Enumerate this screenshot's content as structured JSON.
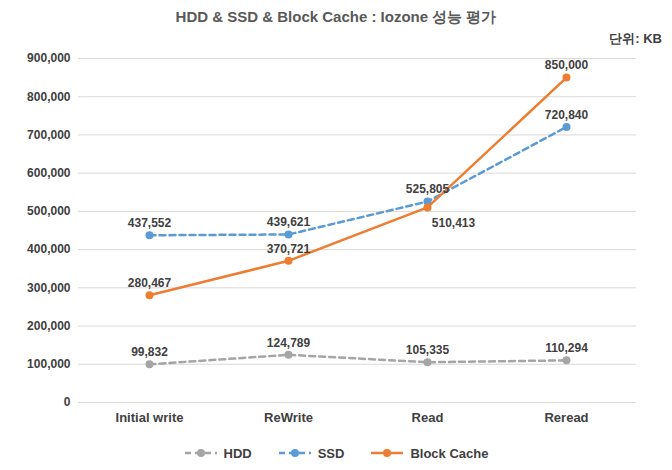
{
  "chart_data": {
    "type": "line",
    "title": "HDD & SSD & Block Cache : Iozone 성능 평가",
    "ylabel": "단위: KB",
    "categories": [
      "Initial write",
      "ReWrite",
      "Read",
      "Reread"
    ],
    "series": [
      {
        "name": "HDD",
        "color": "#A5A5A5",
        "line_style": "dashed",
        "marker": "circle",
        "values": [
          99832,
          124789,
          105335,
          110294
        ],
        "value_labels": [
          "99,832",
          "124,789",
          "105,335",
          "110,294"
        ]
      },
      {
        "name": "SSD",
        "color": "#5B9BD5",
        "line_style": "dashed",
        "marker": "circle",
        "values": [
          437552,
          439621,
          525805,
          720840
        ],
        "value_labels": [
          "437,552",
          "439,621",
          "525,805",
          "720,840"
        ]
      },
      {
        "name": "Block Cache",
        "color": "#ED7D31",
        "line_style": "solid",
        "marker": "circle",
        "values": [
          280467,
          370721,
          510413,
          850000
        ],
        "value_labels": [
          "280,467",
          "370,721",
          "510,413",
          "850,000"
        ]
      }
    ],
    "ylim": [
      0,
      900000
    ],
    "yticks": [
      0,
      {
        "value": 100000,
        "label": "100,000"
      },
      {
        "value": 200000,
        "label": "200,000"
      },
      {
        "value": 300000,
        "label": "300,000"
      },
      {
        "value": 400000,
        "label": "400,000"
      },
      {
        "value": 500000,
        "label": "500,000"
      },
      {
        "value": 600000,
        "label": "600,000"
      },
      {
        "value": 700000,
        "label": "700,000"
      },
      {
        "value": 800000,
        "label": "800,000"
      },
      {
        "value": 900000,
        "label": "900,000"
      }
    ],
    "grid": true,
    "data_labels": true,
    "legend": "bottom"
  }
}
